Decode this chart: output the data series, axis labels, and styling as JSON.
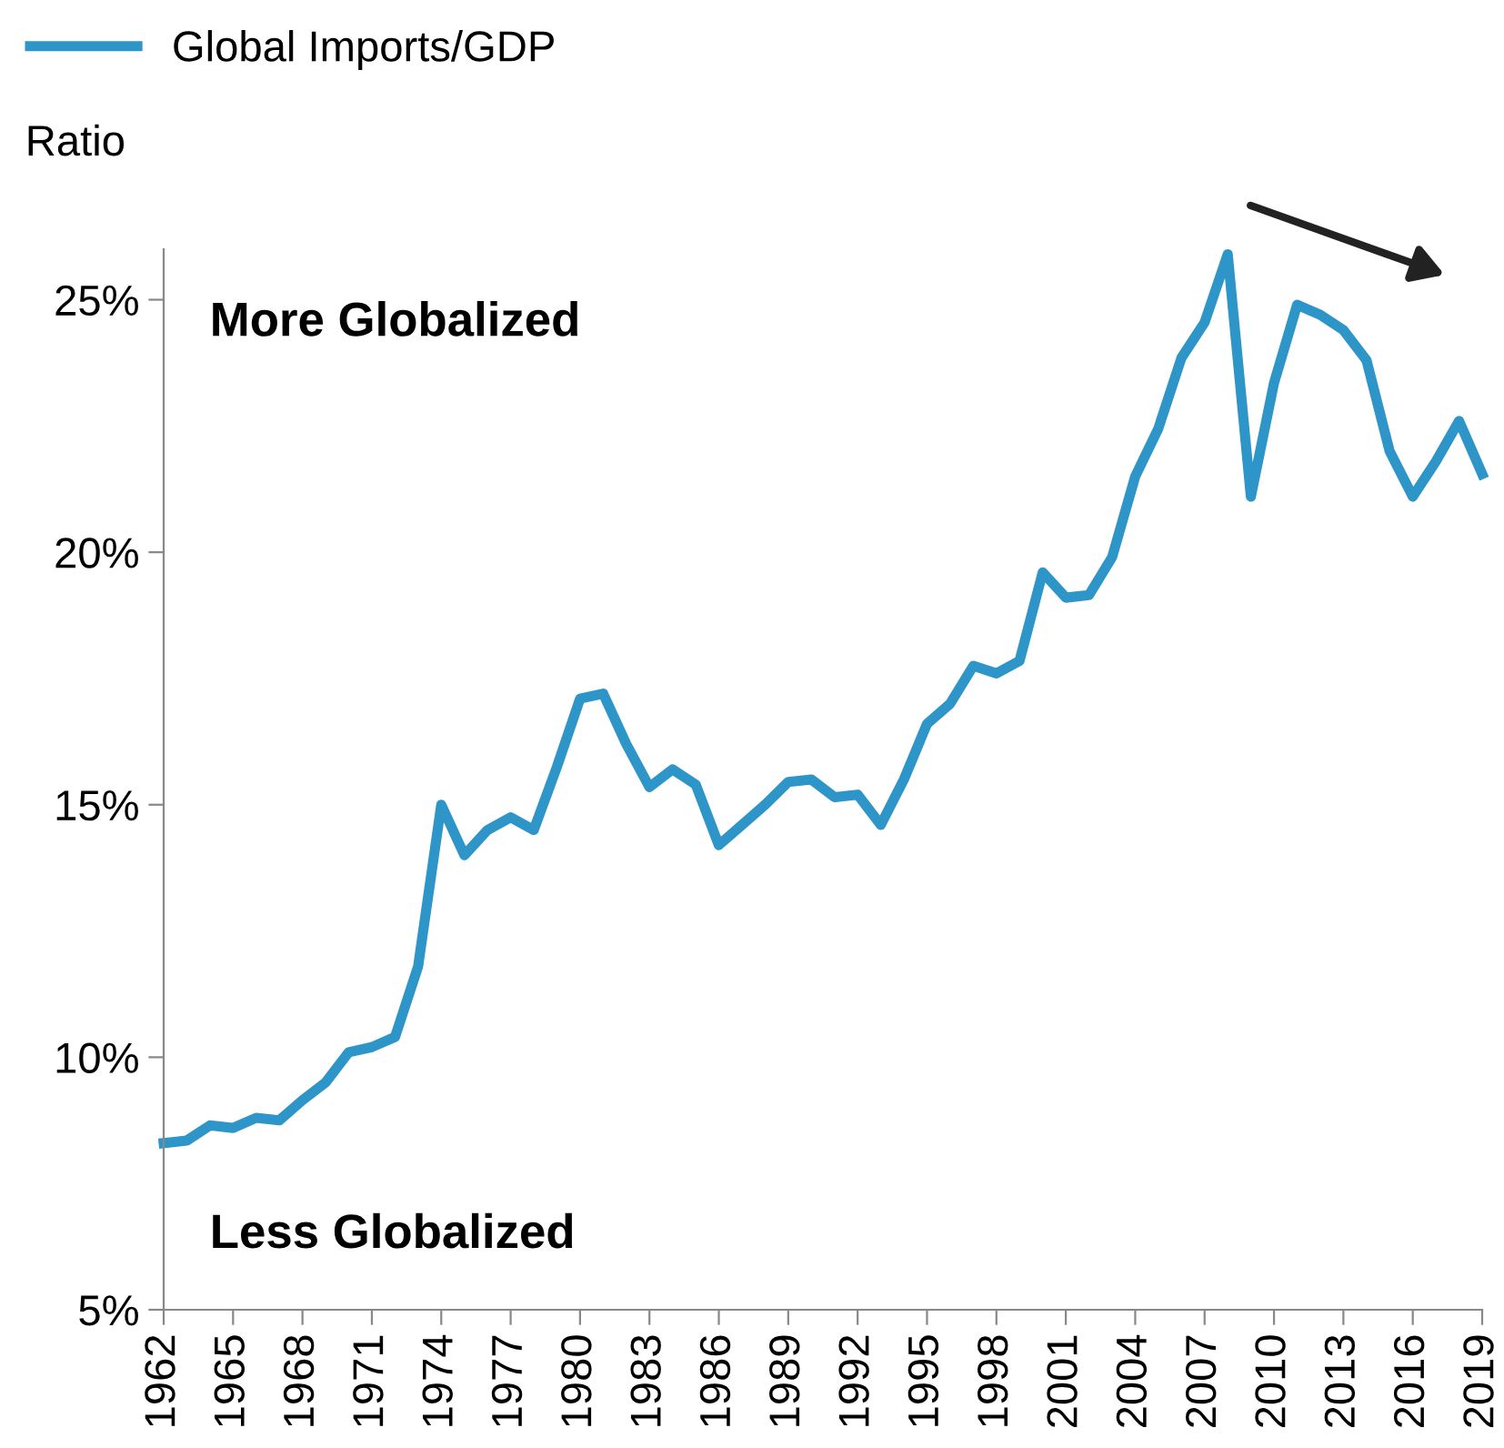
{
  "chart_data": {
    "type": "line",
    "ylabel": "Ratio",
    "legend": "top left",
    "grid": false,
    "marker": "none",
    "line_style": "solid",
    "x": [
      1962,
      1963,
      1964,
      1965,
      1966,
      1967,
      1968,
      1969,
      1970,
      1971,
      1972,
      1973,
      1974,
      1975,
      1976,
      1977,
      1978,
      1979,
      1980,
      1981,
      1982,
      1983,
      1984,
      1985,
      1986,
      1987,
      1988,
      1989,
      1990,
      1991,
      1992,
      1993,
      1994,
      1995,
      1996,
      1997,
      1998,
      1999,
      2000,
      2001,
      2002,
      2003,
      2004,
      2005,
      2006,
      2007,
      2008,
      2009,
      2010,
      2011,
      2012,
      2013,
      2014,
      2015,
      2016,
      2017,
      2018,
      2019
    ],
    "series": [
      {
        "name": "Global Imports/GDP",
        "color": "#2e95c8",
        "values": [
          8.3,
          8.35,
          8.65,
          8.6,
          8.8,
          8.75,
          9.15,
          9.5,
          10.1,
          10.2,
          10.4,
          11.8,
          15.0,
          14.0,
          14.5,
          14.75,
          14.5,
          15.75,
          17.1,
          17.2,
          16.2,
          15.35,
          15.7,
          15.4,
          14.2,
          14.6,
          15.0,
          15.45,
          15.5,
          15.15,
          15.2,
          14.6,
          15.5,
          16.6,
          17.0,
          17.75,
          17.6,
          17.85,
          19.6,
          19.1,
          19.15,
          19.9,
          21.5,
          22.45,
          23.85,
          24.55,
          25.9,
          21.1,
          23.35,
          24.9,
          24.7,
          24.4,
          23.8,
          22.0,
          21.1,
          21.8,
          22.6,
          21.55
        ]
      }
    ],
    "xlim": [
      1962,
      2019
    ],
    "xticks": [
      1962,
      1965,
      1968,
      1971,
      1974,
      1977,
      1980,
      1983,
      1986,
      1989,
      1992,
      1995,
      1998,
      2001,
      2004,
      2007,
      2010,
      2013,
      2016,
      2019
    ],
    "ylim": [
      5,
      26
    ],
    "yticks": [
      {
        "value": 5,
        "label": "5%"
      },
      {
        "value": 10,
        "label": "10%"
      },
      {
        "value": 15,
        "label": "15%"
      },
      {
        "value": 20,
        "label": "20%"
      },
      {
        "value": 25,
        "label": "25%"
      }
    ],
    "annotations": [
      "More Globalized",
      "Less Globalized"
    ]
  }
}
